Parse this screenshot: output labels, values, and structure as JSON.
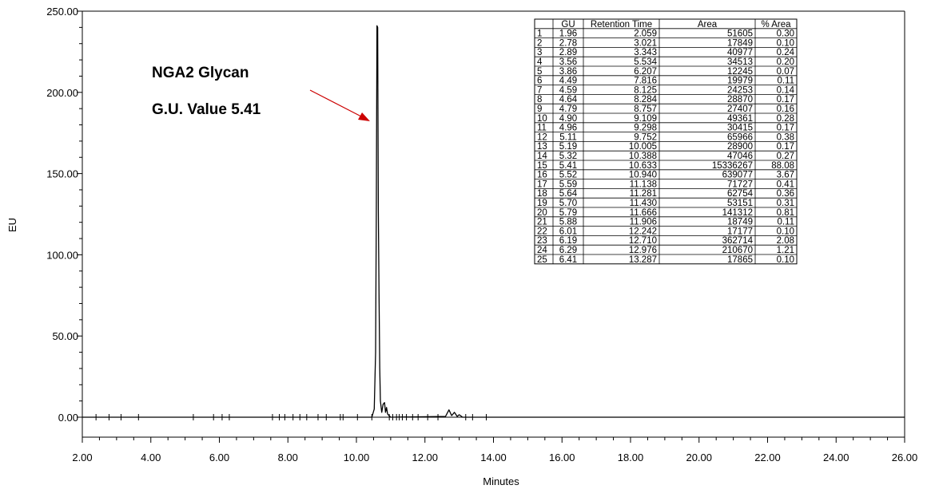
{
  "chart_data": {
    "type": "line",
    "xlabel": "Minutes",
    "ylabel": "EU",
    "xlim": [
      2.0,
      26.0
    ],
    "ylim": [
      0.0,
      250.0
    ],
    "x_ticks": [
      "2.00",
      "4.00",
      "6.00",
      "8.00",
      "10.00",
      "12.00",
      "14.00",
      "16.00",
      "18.00",
      "20.00",
      "22.00",
      "24.00",
      "26.00"
    ],
    "y_ticks": [
      "0.00",
      "50.00",
      "100.00",
      "150.00",
      "200.00",
      "250.00"
    ],
    "series": [
      {
        "x": [
          2.0,
          10.45,
          10.52,
          10.56,
          10.58,
          10.6,
          10.62,
          10.64,
          10.66,
          10.68,
          10.7,
          10.74,
          10.78,
          10.82,
          10.85,
          10.88,
          10.91,
          10.95,
          11.0,
          12.6,
          12.7,
          12.78,
          12.86,
          12.94,
          13.0,
          13.1,
          26.0
        ],
        "y": [
          0.0,
          0.0,
          5.0,
          40.0,
          128.0,
          241.0,
          240.0,
          128.0,
          75.0,
          30.0,
          10.0,
          3.0,
          8.0,
          9.0,
          3.0,
          6.0,
          2.0,
          1.0,
          0.0,
          0.5,
          4.5,
          1.0,
          3.0,
          0.5,
          1.5,
          0.0,
          0.0
        ]
      }
    ],
    "integration_markers_x": [
      2.4,
      2.78,
      3.13,
      3.64,
      5.24,
      5.83,
      6.08,
      6.29,
      7.55,
      7.75,
      7.91,
      8.15,
      8.35,
      8.55,
      8.88,
      9.12,
      9.53,
      9.61,
      10.03,
      10.45,
      10.96,
      11.06,
      11.17,
      11.25,
      11.34,
      11.46,
      11.64,
      11.8,
      12.08,
      12.38,
      13.19,
      13.39,
      13.79
    ],
    "annotation": {
      "line1": "NGA2 Glycan",
      "line2": "G.U. Value 5.41",
      "arrow_color": "#cc0000"
    },
    "table": {
      "columns": [
        "",
        "GU",
        "Retention Time",
        "Area",
        "% Area"
      ],
      "rows": [
        [
          "1",
          "1.96",
          "2.059",
          "51605",
          "0.30"
        ],
        [
          "2",
          "2.78",
          "3.021",
          "17849",
          "0.10"
        ],
        [
          "3",
          "2.89",
          "3.343",
          "40977",
          "0.24"
        ],
        [
          "4",
          "3.56",
          "5.534",
          "34513",
          "0.20"
        ],
        [
          "5",
          "3.86",
          "6.207",
          "12245",
          "0.07"
        ],
        [
          "6",
          "4.49",
          "7.816",
          "19979",
          "0.11"
        ],
        [
          "7",
          "4.59",
          "8.125",
          "24253",
          "0.14"
        ],
        [
          "8",
          "4.64",
          "8.284",
          "28870",
          "0.17"
        ],
        [
          "9",
          "4.79",
          "8.757",
          "27407",
          "0.16"
        ],
        [
          "10",
          "4.90",
          "9.109",
          "49361",
          "0.28"
        ],
        [
          "11",
          "4.96",
          "9.298",
          "30415",
          "0.17"
        ],
        [
          "12",
          "5.11",
          "9.752",
          "65966",
          "0.38"
        ],
        [
          "13",
          "5.19",
          "10.005",
          "28900",
          "0.17"
        ],
        [
          "14",
          "5.32",
          "10.388",
          "47046",
          "0.27"
        ],
        [
          "15",
          "5.41",
          "10.633",
          "15336267",
          "88.08"
        ],
        [
          "16",
          "5.52",
          "10.940",
          "639077",
          "3.67"
        ],
        [
          "17",
          "5.59",
          "11.138",
          "71727",
          "0.41"
        ],
        [
          "18",
          "5.64",
          "11.281",
          "62754",
          "0.36"
        ],
        [
          "19",
          "5.70",
          "11.430",
          "53151",
          "0.31"
        ],
        [
          "20",
          "5.79",
          "11.666",
          "141312",
          "0.81"
        ],
        [
          "21",
          "5.88",
          "11.906",
          "18749",
          "0.11"
        ],
        [
          "22",
          "6.01",
          "12.242",
          "17177",
          "0.10"
        ],
        [
          "23",
          "6.19",
          "12.710",
          "362714",
          "2.08"
        ],
        [
          "24",
          "6.29",
          "12.976",
          "210670",
          "1.21"
        ],
        [
          "25",
          "6.41",
          "13.287",
          "17865",
          "0.10"
        ]
      ]
    }
  }
}
